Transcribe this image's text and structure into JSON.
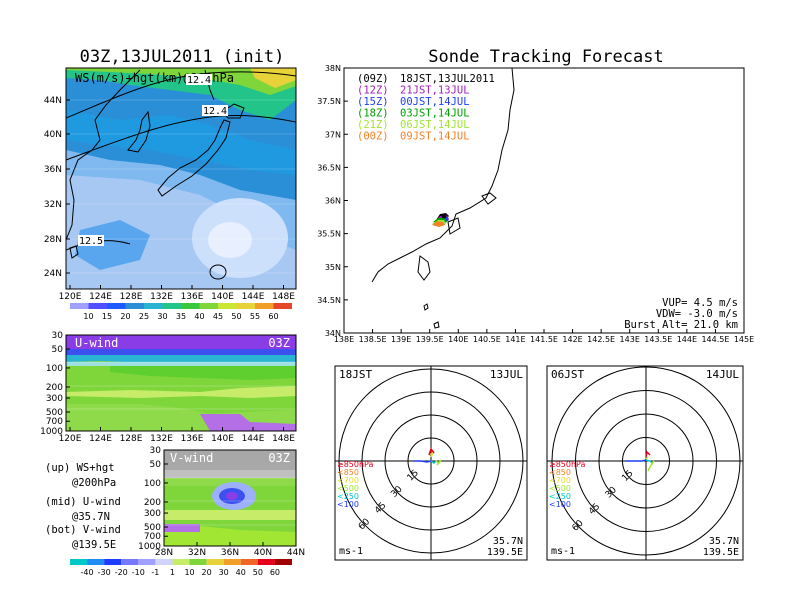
{
  "left_title": "03Z,13JUL2011 (init)",
  "right_title": "Sonde Tracking Forecast",
  "map_panel": {
    "label": "WS(m/s)+hgt(km)@200hPa",
    "contour_labels": [
      "12.4",
      "12.5",
      "12.4"
    ],
    "lat_ticks": [
      "44N",
      "40N",
      "36N",
      "32N",
      "28N",
      "24N"
    ],
    "lon_ticks": [
      "120E",
      "124E",
      "128E",
      "132E",
      "136E",
      "140E",
      "144E",
      "148E"
    ],
    "colorbar_ticks": [
      "10",
      "15",
      "20",
      "25",
      "30",
      "35",
      "40",
      "45",
      "50",
      "55",
      "60"
    ]
  },
  "u_panel": {
    "label": "U-wind",
    "time": "03Z",
    "p_ticks": [
      "30",
      "50",
      "100",
      "200",
      "300",
      "500",
      "700",
      "1000"
    ],
    "lon_ticks": [
      "120E",
      "124E",
      "128E",
      "132E",
      "136E",
      "140E",
      "144E",
      "148E"
    ]
  },
  "v_panel": {
    "label": "V-wind",
    "time": "03Z",
    "p_ticks": [
      "30",
      "50",
      "100",
      "200",
      "300",
      "500",
      "700",
      "1000"
    ],
    "lat_ticks": [
      "28N",
      "32N",
      "36N",
      "40N",
      "44N"
    ]
  },
  "bottom_colorbar_ticks": [
    "-40",
    "-30",
    "-20",
    "-10",
    "-1",
    "1",
    "10",
    "20",
    "30",
    "40",
    "50",
    "60"
  ],
  "legend_text": {
    "up_1": "(up) WS+hgt",
    "up_2": "@200hPa",
    "mid_1": "(mid) U-wind",
    "mid_2": "@35.7N",
    "bot_1": "(bot) V-wind",
    "bot_2": "@139.5E"
  },
  "track_panel": {
    "lat_ticks": [
      "38N",
      "37.5N",
      "37N",
      "36.5N",
      "36N",
      "35.5N",
      "35N",
      "34.5N",
      "34N"
    ],
    "lon_ticks": [
      "138E",
      "138.5E",
      "139E",
      "139.5E",
      "140E",
      "140.5E",
      "141E",
      "141.5E",
      "142E",
      "142.5E",
      "143E",
      "143.5E",
      "144E",
      "144.5E",
      "145E"
    ],
    "runs": [
      {
        "z": "(09Z)",
        "jst": "18JST,13JUL2011",
        "color": "#000000"
      },
      {
        "z": "(12Z)",
        "jst": "21JST,13JUL",
        "color": "#a020c0"
      },
      {
        "z": "(15Z)",
        "jst": "00JST,14JUL",
        "color": "#1e3cff"
      },
      {
        "z": "(18Z)",
        "jst": "03JST,14JUL",
        "color": "#00a000"
      },
      {
        "z": "(21Z)",
        "jst": "06JST,14JUL",
        "color": "#a0e632"
      },
      {
        "z": "(00Z)",
        "jst": "09JST,14JUL",
        "color": "#f08228"
      }
    ],
    "vup": "VUP= 4.5 m/s",
    "vdw": "VDW= -3.0 m/s",
    "burst": "Burst Alt= 21.0 km"
  },
  "hodograph_left": {
    "time": "18JST",
    "date": "13JUL",
    "ring_labels": [
      "15",
      "30",
      "45",
      "60"
    ],
    "levels": [
      "≥850hPa",
      "<850",
      "<700",
      "<500",
      "<250",
      "<100"
    ],
    "unit": "ms-1",
    "lat": "35.7N",
    "lon": "139.5E"
  },
  "hodograph_right": {
    "time": "06JST",
    "date": "14JUL",
    "ring_labels": [
      "15",
      "30",
      "45",
      "60"
    ],
    "levels": [
      "≥850hPa",
      "<850",
      "<700",
      "<500",
      "<250",
      "<100"
    ],
    "unit": "ms-1",
    "lat": "35.7N",
    "lon": "139.5E"
  },
  "colors": {
    "level_colors": [
      "#e6001e",
      "#f08228",
      "#e6dc32",
      "#a0e632",
      "#00c8c8",
      "#1e3cff"
    ]
  }
}
